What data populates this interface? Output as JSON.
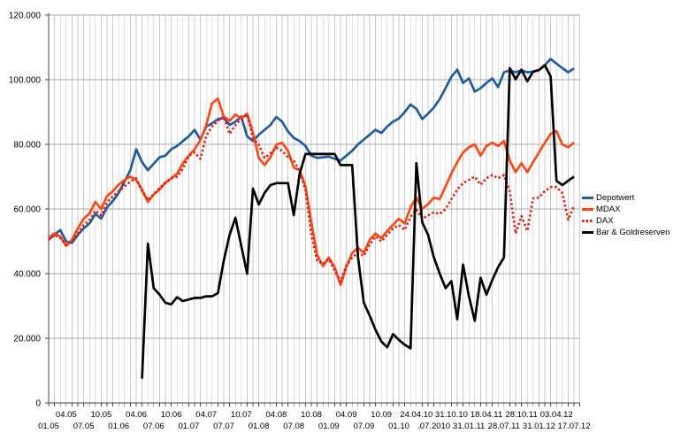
{
  "chart_data": {
    "type": "line",
    "title": "",
    "x_axis": {
      "unit": "month",
      "n_points": 91,
      "tick_labels_row_upper": [
        {
          "label": "04.05",
          "month_index": 3
        },
        {
          "label": "10.05",
          "month_index": 9
        },
        {
          "label": "04.06",
          "month_index": 15
        },
        {
          "label": "10.06",
          "month_index": 21
        },
        {
          "label": "04.07",
          "month_index": 27
        },
        {
          "label": "10.07",
          "month_index": 33
        },
        {
          "label": "04.08",
          "month_index": 39
        },
        {
          "label": "10.08",
          "month_index": 45
        },
        {
          "label": "04.09",
          "month_index": 51
        },
        {
          "label": "10.09",
          "month_index": 57
        },
        {
          "label": "24.04.10",
          "month_index": 63
        },
        {
          "label": "31.10.10",
          "month_index": 69
        },
        {
          "label": "18.04.11",
          "month_index": 75
        },
        {
          "label": "28.10.11",
          "month_index": 81
        },
        {
          "label": "03.04.12",
          "month_index": 87
        }
      ],
      "tick_labels_row_lower": [
        {
          "label": "01.05",
          "month_index": 0
        },
        {
          "label": "07.05",
          "month_index": 6
        },
        {
          "label": "01.06",
          "month_index": 12
        },
        {
          "label": "07.06",
          "month_index": 18
        },
        {
          "label": "01.07",
          "month_index": 24
        },
        {
          "label": "07.07",
          "month_index": 30
        },
        {
          "label": "01.08",
          "month_index": 36
        },
        {
          "label": "07.08",
          "month_index": 42
        },
        {
          "label": "01.09",
          "month_index": 48
        },
        {
          "label": "07.09",
          "month_index": 54
        },
        {
          "label": "01.10",
          "month_index": 60
        },
        {
          "label": ".07.2010",
          "month_index": 66
        },
        {
          "label": "31.01.11",
          "month_index": 72
        },
        {
          "label": "28.07.11",
          "month_index": 78
        },
        {
          "label": "31.01.12",
          "month_index": 84
        },
        {
          "label": "17.07.12",
          "month_index": 90
        }
      ]
    },
    "y_axis": {
      "min": 0,
      "max": 120000,
      "step": 20000,
      "tick_labels": [
        "0",
        "20.000",
        "40.000",
        "60.000",
        "80.000",
        "100.000",
        "120.000"
      ]
    },
    "grid": {
      "vertical": "every month",
      "horizontal": "every 20.000",
      "color_vertical": "#C9C9C9",
      "color_horizontal": "#A8A8A8"
    },
    "legend_position": "right",
    "series": [
      {
        "name": "Depotwert",
        "color": "#1F5C99",
        "style": "solid",
        "values": [
          50500,
          52000,
          53500,
          50000,
          49500,
          52000,
          54000,
          55500,
          58500,
          57000,
          60500,
          62500,
          65000,
          68500,
          72000,
          78500,
          74500,
          72000,
          74000,
          76000,
          76500,
          78500,
          79500,
          81000,
          82500,
          84500,
          81500,
          85500,
          86500,
          87800,
          88100,
          86000,
          87000,
          88600,
          82500,
          81000,
          83000,
          84500,
          86000,
          88500,
          87000,
          84000,
          82000,
          81000,
          79500,
          76500,
          75800,
          76000,
          76200,
          75500,
          75000,
          76500,
          78000,
          80000,
          81500,
          83000,
          84500,
          83500,
          85500,
          87000,
          88000,
          90000,
          92300,
          91000,
          87800,
          89500,
          91400,
          94000,
          97400,
          100900,
          103100,
          99000,
          100400,
          96300,
          97400,
          99000,
          100400,
          97700,
          102300,
          102900,
          102300,
          102900,
          102300,
          102500,
          103000,
          104500,
          106400,
          105000,
          103600,
          102300,
          103500
        ]
      },
      {
        "name": "MDAX",
        "color": "#FF4814",
        "style": "solid",
        "values": [
          51000,
          52500,
          51500,
          48600,
          50500,
          54000,
          57000,
          58600,
          62200,
          60000,
          64000,
          65500,
          67500,
          69000,
          70000,
          69000,
          66000,
          62200,
          64500,
          66000,
          68200,
          69500,
          70900,
          74200,
          76500,
          78500,
          81300,
          86000,
          92700,
          94100,
          88600,
          87300,
          89200,
          88000,
          89500,
          83700,
          75800,
          73600,
          76000,
          79900,
          80500,
          78000,
          72800,
          72000,
          67000,
          55900,
          45800,
          42300,
          45000,
          42000,
          36500,
          42000,
          46400,
          48000,
          46400,
          50500,
          52400,
          51000,
          53200,
          55100,
          57000,
          55500,
          60500,
          63500,
          60000,
          61500,
          63500,
          63000,
          67000,
          71000,
          74500,
          77500,
          79100,
          80000,
          76500,
          79500,
          80500,
          79500,
          81000,
          75000,
          71400,
          74200,
          71400,
          74500,
          77500,
          80500,
          83200,
          84100,
          80000,
          79100,
          80500
        ]
      },
      {
        "name": "DAX",
        "color": "#DE2110",
        "style": "dotted",
        "values": [
          50500,
          52000,
          51000,
          48800,
          50000,
          52500,
          55000,
          56500,
          59500,
          58000,
          62000,
          64000,
          65500,
          67000,
          68500,
          69500,
          65500,
          62800,
          64500,
          66500,
          68000,
          69500,
          70000,
          72500,
          76400,
          77500,
          75500,
          82700,
          85500,
          87300,
          88600,
          83200,
          86000,
          87800,
          89200,
          82000,
          79900,
          75800,
          77200,
          79000,
          78000,
          76000,
          75000,
          71700,
          66000,
          52000,
          44000,
          43000,
          44500,
          41000,
          37500,
          42500,
          45000,
          46500,
          45500,
          49000,
          51500,
          50000,
          52000,
          54000,
          55000,
          53500,
          57500,
          59800,
          57000,
          58000,
          59000,
          58500,
          60000,
          63000,
          66000,
          68000,
          69000,
          70000,
          67500,
          69500,
          70500,
          69500,
          70500,
          65500,
          52400,
          57800,
          53200,
          63300,
          63500,
          65500,
          66800,
          66800,
          65000,
          56700,
          61000
        ]
      },
      {
        "name": "Bar & Goldreserven",
        "color": "#000000",
        "style": "solid",
        "values": [
          null,
          null,
          null,
          null,
          null,
          null,
          null,
          null,
          null,
          null,
          null,
          null,
          null,
          null,
          null,
          null,
          7500,
          49300,
          35500,
          33500,
          31000,
          30500,
          32700,
          31500,
          32000,
          32500,
          32500,
          33000,
          33000,
          34000,
          44000,
          52000,
          57300,
          48600,
          40000,
          66300,
          61400,
          65000,
          67400,
          68000,
          68000,
          68000,
          58100,
          70900,
          77000,
          77000,
          77000,
          77000,
          77000,
          77000,
          73600,
          73600,
          73600,
          45000,
          31000,
          27000,
          22600,
          19000,
          17200,
          21300,
          19500,
          18000,
          16900,
          74200,
          55900,
          52000,
          45000,
          40000,
          35500,
          37700,
          25900,
          42800,
          33000,
          25400,
          38700,
          33500,
          38000,
          42000,
          45000,
          103600,
          100100,
          103100,
          99500,
          102500,
          103000,
          104500,
          101000,
          68700,
          67400,
          68700,
          70000
        ]
      }
    ]
  },
  "legend": {
    "items": [
      {
        "label": "Depotwert"
      },
      {
        "label": "MDAX"
      },
      {
        "label": "DAX"
      },
      {
        "label": "Bar & Goldreserven"
      }
    ]
  }
}
